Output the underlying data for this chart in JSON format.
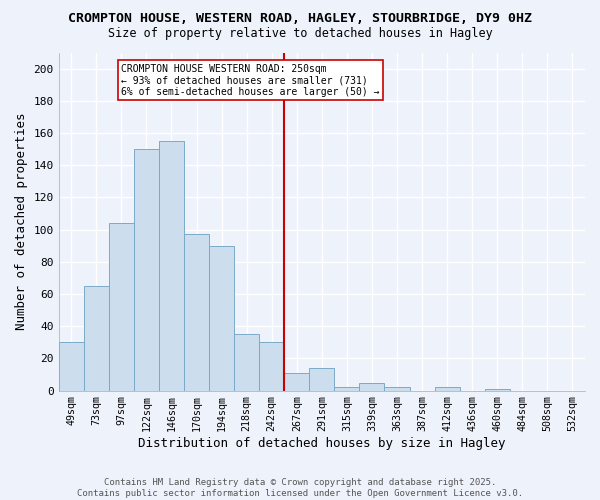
{
  "title": "CROMPTON HOUSE, WESTERN ROAD, HAGLEY, STOURBRIDGE, DY9 0HZ",
  "subtitle": "Size of property relative to detached houses in Hagley",
  "xlabel": "Distribution of detached houses by size in Hagley",
  "ylabel": "Number of detached properties",
  "bar_color": "#ccdded",
  "bar_edge_color": "#7aaac8",
  "categories": [
    "49sqm",
    "73sqm",
    "97sqm",
    "122sqm",
    "146sqm",
    "170sqm",
    "194sqm",
    "218sqm",
    "242sqm",
    "267sqm",
    "291sqm",
    "315sqm",
    "339sqm",
    "363sqm",
    "387sqm",
    "412sqm",
    "436sqm",
    "460sqm",
    "484sqm",
    "508sqm",
    "532sqm"
  ],
  "values": [
    30,
    65,
    104,
    150,
    155,
    97,
    90,
    35,
    30,
    11,
    14,
    2,
    5,
    2,
    0,
    2,
    0,
    1,
    0,
    0,
    0
  ],
  "vline_x": 8.5,
  "vline_color": "#cc0000",
  "annotation_text": "CROMPTON HOUSE WESTERN ROAD: 250sqm\n← 93% of detached houses are smaller (731)\n6% of semi-detached houses are larger (50) →",
  "annotation_box_facecolor": "#ffffff",
  "annotation_box_edgecolor": "#cc0000",
  "ylim": [
    0,
    210
  ],
  "yticks": [
    0,
    20,
    40,
    60,
    80,
    100,
    120,
    140,
    160,
    180,
    200
  ],
  "footer": "Contains HM Land Registry data © Crown copyright and database right 2025.\nContains public sector information licensed under the Open Government Licence v3.0.",
  "background_color": "#eef2fb",
  "grid_color": "#ffffff",
  "title_fontsize": 9.5,
  "subtitle_fontsize": 8.5,
  "footer_color": "#555555"
}
